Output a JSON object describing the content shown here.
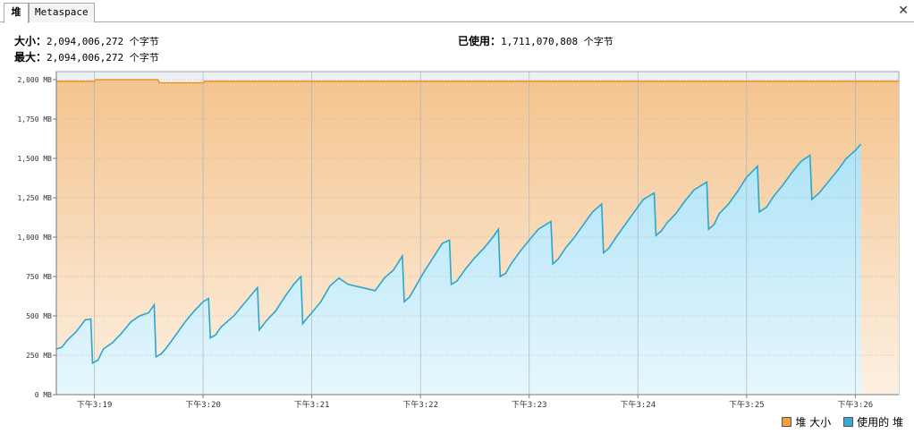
{
  "tabs": [
    {
      "label": "堆",
      "active": true
    },
    {
      "label": "Metaspace",
      "active": false
    }
  ],
  "close_glyph": "✕",
  "stats": {
    "size_label": "大小：",
    "size_value": "2,094,006,272 个字节",
    "max_label": "最大：",
    "max_value": "2,094,006,272 个字节",
    "used_label": "已使用：",
    "used_value": "1,711,070,808 个字节"
  },
  "legend": {
    "heap_size": "堆 大小",
    "used_heap": "使用的 堆"
  },
  "colors": {
    "size_line": "#e8962e",
    "used_line": "#2aa6cf",
    "size_fill_top": "#f4c48e",
    "size_fill_bottom": "#fdf0e2",
    "used_fill_top": "#aee3f7",
    "used_fill_bottom": "#e6f7fd",
    "legend_size": "#f0a040",
    "legend_used": "#3aa8d8"
  },
  "chart_data": {
    "type": "area",
    "y_unit": "MB",
    "ylim": [
      0,
      2000
    ],
    "ytick_labels": [
      "0 MB",
      "250 MB",
      "500 MB",
      "750 MB",
      "1,000 MB",
      "1,250 MB",
      "1,500 MB",
      "1,750 MB",
      "2,000 MB"
    ],
    "ytick_values": [
      0,
      250,
      500,
      750,
      1000,
      1250,
      1500,
      1750,
      2000
    ],
    "xlim": [
      "下午3:18:39",
      "下午3:26:24"
    ],
    "xtick_labels": [
      "下午3:19",
      "下午3:20",
      "下午3:21",
      "下午3:22",
      "下午3:23",
      "下午3:24",
      "下午3:25",
      "下午3:26"
    ],
    "xtick_seconds": [
      60,
      120,
      180,
      240,
      300,
      360,
      420,
      480
    ],
    "x_start_seconds": 39,
    "x_end_seconds": 504,
    "grid": true,
    "legend_position": "bottom-right",
    "series": [
      {
        "name": "堆 大小",
        "points": [
          [
            39,
            1990
          ],
          [
            60,
            1990
          ],
          [
            61,
            2000
          ],
          [
            95,
            2000
          ],
          [
            96,
            1980
          ],
          [
            120,
            1980
          ],
          [
            121,
            1990
          ],
          [
            504,
            1990
          ]
        ]
      },
      {
        "name": "使用的 堆",
        "points": [
          [
            39,
            290
          ],
          [
            42,
            300
          ],
          [
            45,
            345
          ],
          [
            50,
            400
          ],
          [
            55,
            475
          ],
          [
            58,
            480
          ],
          [
            59,
            200
          ],
          [
            62,
            220
          ],
          [
            65,
            290
          ],
          [
            70,
            330
          ],
          [
            75,
            390
          ],
          [
            80,
            460
          ],
          [
            85,
            500
          ],
          [
            90,
            520
          ],
          [
            93,
            570
          ],
          [
            94,
            240
          ],
          [
            97,
            260
          ],
          [
            100,
            300
          ],
          [
            105,
            380
          ],
          [
            110,
            460
          ],
          [
            115,
            530
          ],
          [
            120,
            590
          ],
          [
            123,
            610
          ],
          [
            124,
            360
          ],
          [
            127,
            380
          ],
          [
            130,
            430
          ],
          [
            137,
            500
          ],
          [
            150,
            680
          ],
          [
            151,
            410
          ],
          [
            155,
            470
          ],
          [
            160,
            530
          ],
          [
            165,
            620
          ],
          [
            170,
            700
          ],
          [
            174,
            750
          ],
          [
            175,
            450
          ],
          [
            177,
            480
          ],
          [
            180,
            520
          ],
          [
            185,
            590
          ],
          [
            190,
            690
          ],
          [
            195,
            740
          ],
          [
            200,
            700
          ],
          [
            215,
            660
          ],
          [
            220,
            740
          ],
          [
            225,
            790
          ],
          [
            230,
            880
          ],
          [
            231,
            590
          ],
          [
            234,
            620
          ],
          [
            238,
            700
          ],
          [
            242,
            780
          ],
          [
            247,
            870
          ],
          [
            252,
            960
          ],
          [
            256,
            980
          ],
          [
            257,
            700
          ],
          [
            260,
            720
          ],
          [
            265,
            800
          ],
          [
            270,
            870
          ],
          [
            275,
            930
          ],
          [
            280,
            1000
          ],
          [
            283,
            1050
          ],
          [
            284,
            750
          ],
          [
            287,
            770
          ],
          [
            290,
            830
          ],
          [
            295,
            910
          ],
          [
            300,
            980
          ],
          [
            305,
            1050
          ],
          [
            312,
            1100
          ],
          [
            313,
            830
          ],
          [
            316,
            860
          ],
          [
            320,
            930
          ],
          [
            325,
            1000
          ],
          [
            330,
            1080
          ],
          [
            335,
            1160
          ],
          [
            340,
            1210
          ],
          [
            341,
            900
          ],
          [
            344,
            930
          ],
          [
            348,
            1000
          ],
          [
            353,
            1080
          ],
          [
            358,
            1160
          ],
          [
            363,
            1240
          ],
          [
            369,
            1280
          ],
          [
            370,
            1010
          ],
          [
            373,
            1040
          ],
          [
            376,
            1090
          ],
          [
            381,
            1150
          ],
          [
            386,
            1230
          ],
          [
            391,
            1300
          ],
          [
            398,
            1350
          ],
          [
            399,
            1050
          ],
          [
            402,
            1080
          ],
          [
            405,
            1150
          ],
          [
            410,
            1210
          ],
          [
            415,
            1290
          ],
          [
            420,
            1380
          ],
          [
            426,
            1450
          ],
          [
            427,
            1160
          ],
          [
            431,
            1190
          ],
          [
            435,
            1260
          ],
          [
            440,
            1330
          ],
          [
            445,
            1410
          ],
          [
            450,
            1480
          ],
          [
            455,
            1520
          ],
          [
            456,
            1240
          ],
          [
            460,
            1280
          ],
          [
            465,
            1350
          ],
          [
            470,
            1420
          ],
          [
            475,
            1500
          ],
          [
            480,
            1550
          ],
          [
            483,
            1590
          ]
        ]
      }
    ]
  }
}
